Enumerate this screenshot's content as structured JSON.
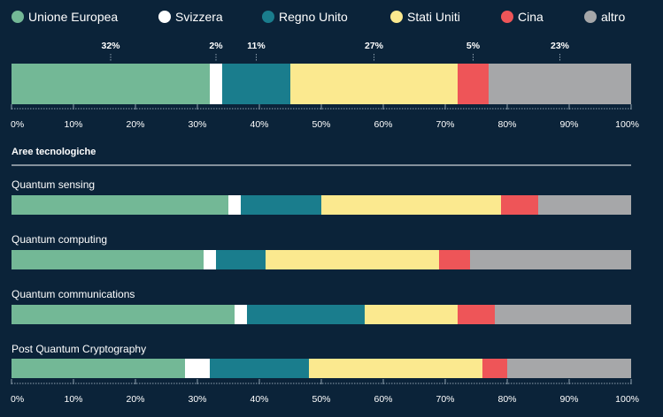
{
  "colors": {
    "background": "#0b2339",
    "Unione Europea": "#73b896",
    "Svizzera": "#ffffff",
    "Regno Unito": "#1a7d8d",
    "Stati Uniti": "#fbe98f",
    "Cina": "#ee5558",
    "altro": "#a6a7a9"
  },
  "chart_data": {
    "type": "bar",
    "orientation": "horizontal-stacked-100",
    "legend": [
      "Unione Europea",
      "Svizzera",
      "Regno Unito",
      "Stati Uniti",
      "Cina",
      "altro"
    ],
    "legend_position": "top",
    "xlim": [
      0,
      100
    ],
    "x_ticks": [
      "0%",
      "10%",
      "20%",
      "30%",
      "40%",
      "50%",
      "60%",
      "70%",
      "80%",
      "90%",
      "100%"
    ],
    "total": {
      "values": [
        32,
        2,
        11,
        27,
        5,
        23
      ],
      "labels": [
        "32%",
        "2%",
        "11%",
        "27%",
        "5%",
        "23%"
      ]
    },
    "section_title": "Aree tecnologiche",
    "categories": [
      {
        "name": "Quantum sensing",
        "values": [
          35,
          2,
          13,
          29,
          6,
          15
        ]
      },
      {
        "name": "Quantum computing",
        "values": [
          31,
          2,
          8,
          28,
          5,
          26
        ]
      },
      {
        "name": "Quantum communications",
        "values": [
          36,
          2,
          19,
          15,
          6,
          22
        ]
      },
      {
        "name": "Post Quantum Cryptography",
        "values": [
          28,
          4,
          16,
          28,
          4,
          20
        ]
      }
    ]
  }
}
